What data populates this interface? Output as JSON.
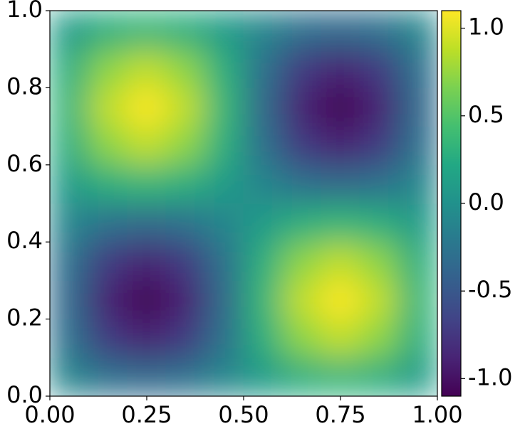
{
  "chart_data": {
    "type": "heatmap",
    "x": [
      0.05,
      0.15,
      0.25,
      0.35,
      0.45,
      0.55,
      0.65,
      0.75,
      0.85,
      0.95
    ],
    "y": [
      0.05,
      0.15,
      0.25,
      0.35,
      0.45,
      0.55,
      0.65,
      0.75,
      0.85,
      0.95
    ],
    "z": [
      [
        -0.1,
        -0.28,
        -0.34,
        -0.28,
        -0.1,
        0.1,
        0.28,
        0.34,
        0.28,
        0.1
      ],
      [
        -0.28,
        -0.72,
        -0.89,
        -0.72,
        -0.28,
        0.28,
        0.72,
        0.89,
        0.72,
        0.28
      ],
      [
        -0.34,
        -0.89,
        -1.1,
        -0.89,
        -0.34,
        0.34,
        0.89,
        1.1,
        0.89,
        0.34
      ],
      [
        -0.28,
        -0.72,
        -0.89,
        -0.72,
        -0.28,
        0.28,
        0.72,
        0.89,
        0.72,
        0.28
      ],
      [
        -0.1,
        -0.28,
        -0.34,
        -0.28,
        -0.1,
        0.1,
        0.28,
        0.34,
        0.28,
        0.1
      ],
      [
        0.1,
        0.28,
        0.34,
        0.28,
        0.1,
        -0.1,
        -0.28,
        -0.34,
        -0.28,
        -0.1
      ],
      [
        0.28,
        0.72,
        0.89,
        0.72,
        0.28,
        -0.28,
        -0.72,
        -0.89,
        -0.72,
        -0.28
      ],
      [
        0.34,
        0.89,
        1.1,
        0.89,
        0.34,
        -0.34,
        -0.89,
        -1.1,
        -0.89,
        -0.34
      ],
      [
        0.28,
        0.72,
        0.89,
        0.72,
        0.28,
        -0.28,
        -0.72,
        -0.89,
        -0.72,
        -0.28
      ],
      [
        0.1,
        0.28,
        0.34,
        0.28,
        0.1,
        -0.1,
        -0.28,
        -0.34,
        -0.28,
        -0.1
      ]
    ],
    "colormap": "viridis",
    "clim": [
      -1.1,
      1.1
    ],
    "xlim": [
      0,
      1
    ],
    "ylim": [
      0,
      1
    ],
    "xticks": [
      {
        "value": 0,
        "label": "0.00"
      },
      {
        "value": 0.25,
        "label": "0.25"
      },
      {
        "value": 0.5,
        "label": "0.50"
      },
      {
        "value": 0.75,
        "label": "0.75"
      },
      {
        "value": 1,
        "label": "1.00"
      }
    ],
    "yticks": [
      {
        "value": 0,
        "label": "0.0"
      },
      0.2,
      0.4,
      0.6,
      0.8,
      {
        "value": 1,
        "label": "1.0"
      }
    ],
    "cticks": [
      {
        "value": -1,
        "label": "-1.0"
      },
      -0.5,
      {
        "value": 0,
        "label": "0.0"
      },
      0.5,
      {
        "value": 1,
        "label": "1.0"
      }
    ]
  }
}
